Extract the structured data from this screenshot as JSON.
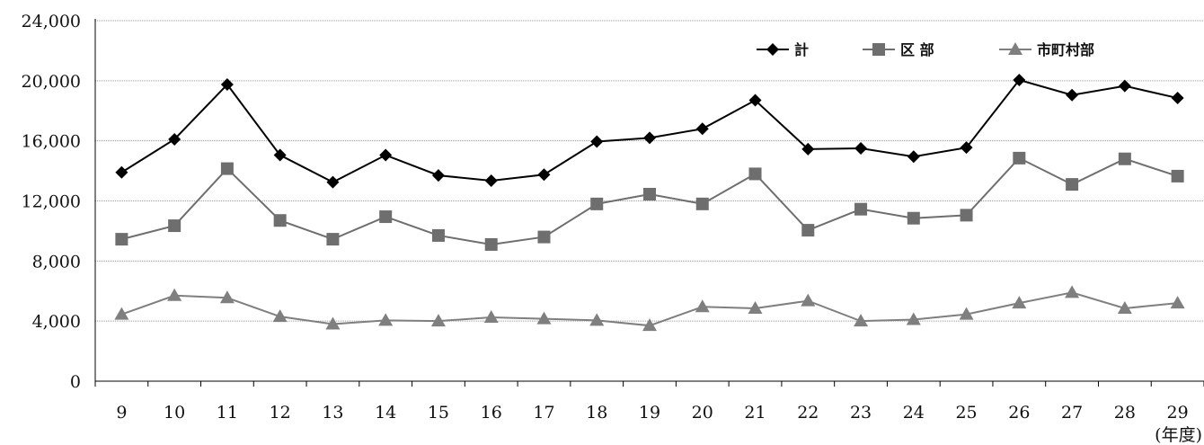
{
  "chart_data": {
    "type": "line",
    "categories": [
      "9",
      "10",
      "11",
      "12",
      "13",
      "14",
      "15",
      "16",
      "17",
      "18",
      "19",
      "20",
      "21",
      "22",
      "23",
      "24",
      "25",
      "26",
      "27",
      "28",
      "29"
    ],
    "x_unit": "(年度)",
    "y_ticks": [
      "0",
      "4,000",
      "8,000",
      "12,000",
      "16,000",
      "20,000",
      "24,000"
    ],
    "ylim": [
      0,
      24000
    ],
    "grid": "horizontal",
    "legend_position": "top-right",
    "series": [
      {
        "name": "計",
        "marker": "diamond",
        "color": "#000000",
        "values": [
          13900,
          16100,
          19750,
          15050,
          13250,
          15050,
          13700,
          13350,
          13750,
          15950,
          16200,
          16800,
          18700,
          15450,
          15500,
          14950,
          15550,
          20050,
          19050,
          19650,
          18850
        ]
      },
      {
        "name": "区 部",
        "marker": "square",
        "color": "#6e6e6e",
        "values": [
          9450,
          10350,
          14150,
          10700,
          9450,
          10950,
          9700,
          9100,
          9600,
          11800,
          12450,
          11800,
          13800,
          10050,
          11450,
          10850,
          11050,
          14850,
          13100,
          14800,
          13650
        ]
      },
      {
        "name": "市町村部",
        "marker": "triangle",
        "color": "#7f7f7f",
        "values": [
          4450,
          5700,
          5550,
          4300,
          3800,
          4050,
          4000,
          4250,
          4150,
          4050,
          3700,
          4950,
          4850,
          5350,
          4000,
          4100,
          4450,
          5200,
          5900,
          4850,
          5200
        ]
      }
    ]
  }
}
